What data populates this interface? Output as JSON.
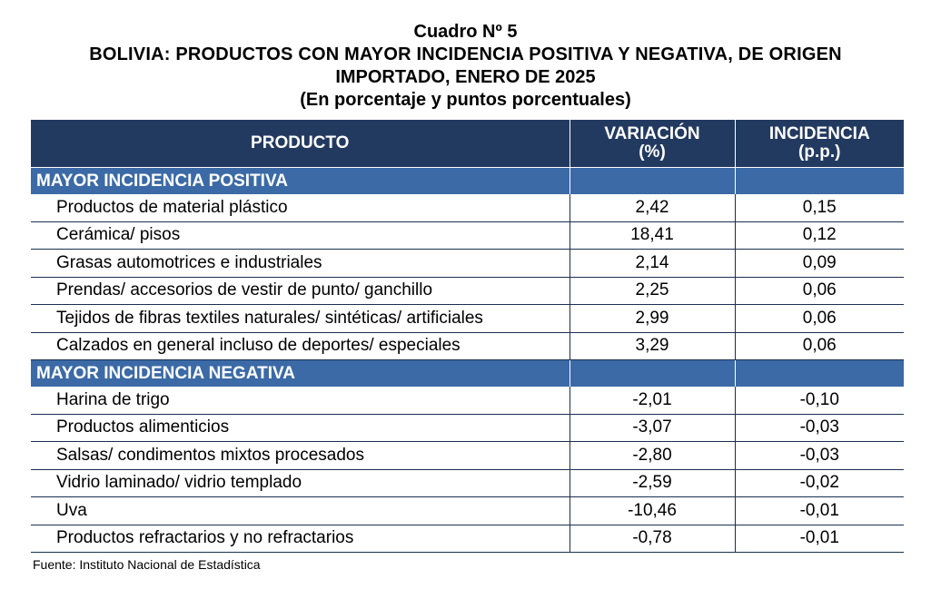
{
  "title": {
    "line1": "Cuadro Nº 5",
    "line2": "BOLIVIA: PRODUCTOS CON MAYOR INCIDENCIA POSITIVA Y NEGATIVA, DE ORIGEN",
    "line3": "IMPORTADO, ENERO DE 2025",
    "line4": "(En porcentaje y puntos porcentuales)"
  },
  "table": {
    "headers": {
      "product": "PRODUCTO",
      "variation": "VARIACIÓN",
      "variation_unit": "(%)",
      "incidence": "INCIDENCIA",
      "incidence_unit": "(p.p.)"
    },
    "positive": {
      "label": "MAYOR INCIDENCIA POSITIVA",
      "rows": [
        {
          "product": "Productos de material plástico",
          "variation": "2,42",
          "incidence": "0,15"
        },
        {
          "product": "Cerámica/ pisos",
          "variation": "18,41",
          "incidence": "0,12"
        },
        {
          "product": "Grasas automotrices e industriales",
          "variation": "2,14",
          "incidence": "0,09"
        },
        {
          "product": "Prendas/ accesorios de vestir de punto/ ganchillo",
          "variation": "2,25",
          "incidence": "0,06"
        },
        {
          "product": "Tejidos de fibras textiles naturales/ sintéticas/ artificiales",
          "variation": "2,99",
          "incidence": "0,06"
        },
        {
          "product": "Calzados en general incluso de deportes/ especiales",
          "variation": "3,29",
          "incidence": "0,06"
        }
      ]
    },
    "negative": {
      "label": "MAYOR INCIDENCIA NEGATIVA",
      "rows": [
        {
          "product": "Harina de trigo",
          "variation": "-2,01",
          "incidence": "-0,10"
        },
        {
          "product": "Productos alimenticios",
          "variation": "-3,07",
          "incidence": "-0,03"
        },
        {
          "product": "Salsas/ condimentos mixtos procesados",
          "variation": "-2,80",
          "incidence": "-0,03"
        },
        {
          "product": "Vidrio laminado/ vidrio templado",
          "variation": "-2,59",
          "incidence": "-0,02"
        },
        {
          "product": "Uva",
          "variation": "-10,46",
          "incidence": "-0,01"
        },
        {
          "product": "Productos refractarios y no refractarios",
          "variation": "-0,78",
          "incidence": "-0,01"
        }
      ]
    }
  },
  "source": "Fuente: Instituto Nacional de Estadística",
  "colors": {
    "header_bg": "#233a60",
    "section_bg": "#3b6aa6",
    "rule": "#1a2f50"
  }
}
